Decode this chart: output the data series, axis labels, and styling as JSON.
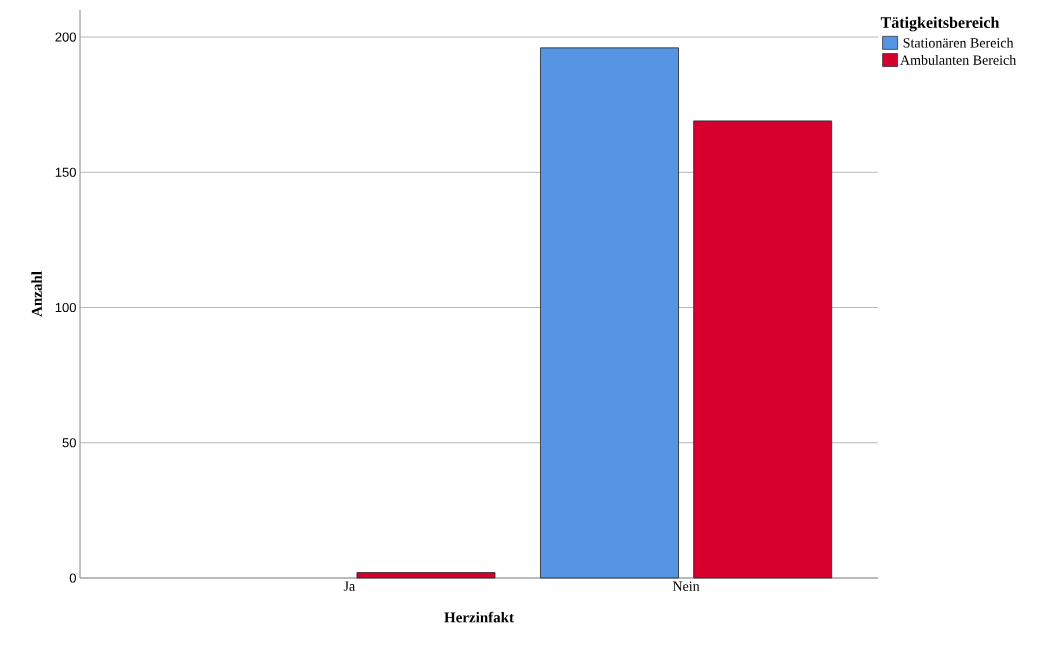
{
  "chart_data": {
    "type": "bar",
    "xlabel": "Herzinfakt",
    "ylabel": "Anzahl",
    "legend_title": "Tätigkeitsbereich",
    "categories": [
      "Ja",
      "Nein"
    ],
    "series": [
      {
        "name": "Stationären Bereich",
        "color": "#5595e3",
        "values": [
          null,
          196
        ]
      },
      {
        "name": "Ambulanten Bereich",
        "color": "#d6002f",
        "values": [
          2,
          169
        ]
      }
    ],
    "ylim": [
      0,
      210
    ],
    "yticks": [
      0,
      50,
      100,
      150,
      200
    ],
    "grid": "y",
    "legend": "top right"
  }
}
